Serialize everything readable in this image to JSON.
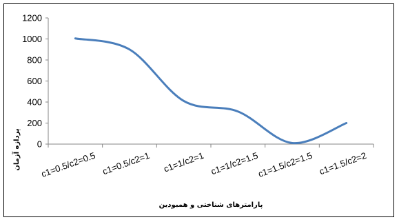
{
  "chart_data": {
    "type": "line",
    "categories": [
      "c1=0.5/c2=0.5",
      "c1=0.5/c2=1",
      "c1=1/c2=1",
      "c1=1/c2=1.5",
      "c1=1.5/c2=1.5",
      "c1=1.5/c2=2"
    ],
    "series": [
      {
        "values": [
          1005,
          900,
          410,
          310,
          10,
          200
        ],
        "color": "#4a7ebb"
      }
    ],
    "title": "",
    "xlabel": "پارامترهای شناختی و همبودین",
    "ylabel": "پردازه آزمان",
    "ylim": [
      0,
      1200
    ],
    "yticks": [
      0,
      200,
      400,
      600,
      800,
      1000,
      1200
    ],
    "grid": false,
    "legend": "none",
    "smooth": true
  }
}
